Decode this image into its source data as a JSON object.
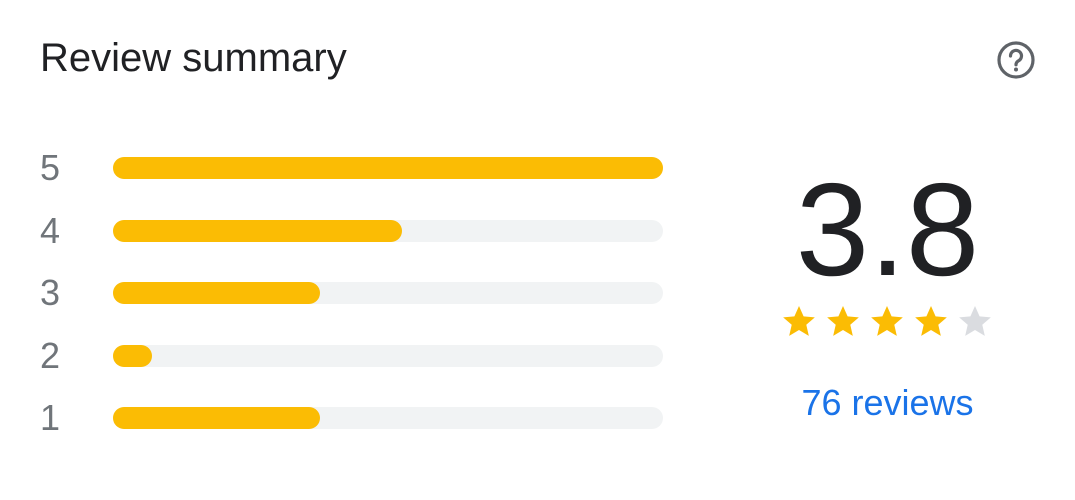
{
  "header": {
    "title": "Review summary",
    "help_icon": "help-circle-icon"
  },
  "distribution": [
    {
      "stars": "5",
      "fraction": 1.0
    },
    {
      "stars": "4",
      "fraction": 0.525
    },
    {
      "stars": "3",
      "fraction": 0.376
    },
    {
      "stars": "2",
      "fraction": 0.07
    },
    {
      "stars": "1",
      "fraction": 0.376
    }
  ],
  "summary": {
    "rating": "3.8",
    "rating_value": 3.8,
    "filled_stars": 4,
    "total_stars": 5,
    "reviews_link": "76 reviews"
  },
  "colors": {
    "star": "#fbbc04",
    "empty_star": "#dadce0",
    "track": "#f1f3f4",
    "link": "#1a73e8"
  }
}
